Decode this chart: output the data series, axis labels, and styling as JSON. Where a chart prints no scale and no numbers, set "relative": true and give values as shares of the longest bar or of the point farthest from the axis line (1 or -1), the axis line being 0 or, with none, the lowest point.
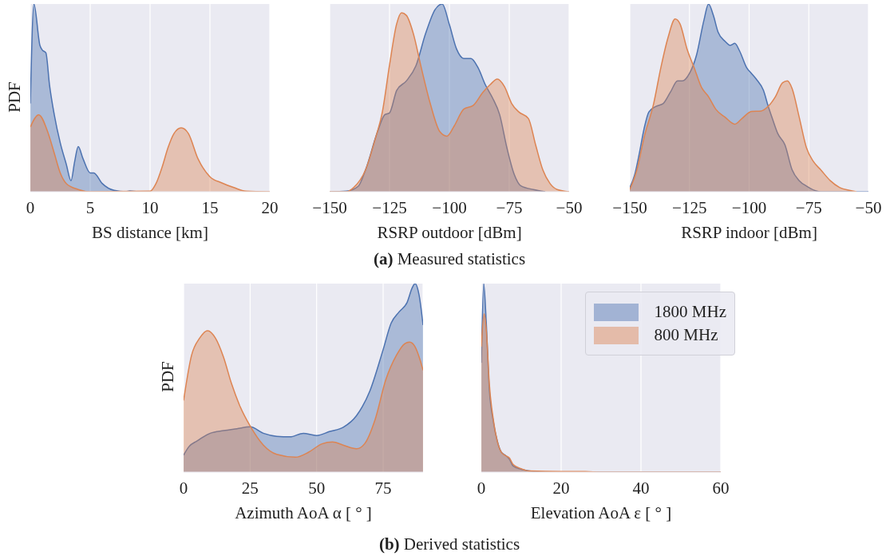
{
  "chart_data": [
    {
      "type": "area",
      "xlabel": "BS distance [km]",
      "ylabel": "PDF",
      "relative": true,
      "xlim": [
        0,
        20
      ],
      "xticks": [
        0,
        5,
        10,
        15,
        20
      ],
      "grid": "x",
      "tick_labels": "x",
      "annotations": [
        "(a) Measured statistics"
      ],
      "series": [
        {
          "color": "#4c72b0",
          "x": [
            0,
            0.3,
            0.8,
            1.0,
            1.3,
            1.6,
            2.0,
            2.5,
            3.0,
            3.4,
            3.7,
            4.0,
            4.4,
            5.0,
            5.3,
            6,
            7,
            8,
            8.3,
            9,
            10
          ],
          "values": [
            0.47,
            1.0,
            0.78,
            0.755,
            0.74,
            0.57,
            0.41,
            0.26,
            0.147,
            0.059,
            0.16,
            0.24,
            0.176,
            0.1,
            0.1,
            0.044,
            0.007,
            0,
            0.004,
            0,
            0
          ]
        },
        {
          "color": "#dd8452",
          "x": [
            0,
            0.7,
            1.5,
            2,
            2.5,
            3,
            4,
            5,
            10,
            10.5,
            11,
            11.5,
            12,
            12.6,
            13.2,
            14,
            15,
            16,
            17,
            18,
            20
          ],
          "values": [
            0.345,
            0.41,
            0.31,
            0.205,
            0.1,
            0.044,
            0.012,
            0,
            0.003,
            0.044,
            0.13,
            0.235,
            0.31,
            0.34,
            0.31,
            0.176,
            0.08,
            0.047,
            0.022,
            0.003,
            0
          ]
        }
      ]
    },
    {
      "type": "area",
      "xlabel": "RSRP outdoor [dBm]",
      "relative": true,
      "xlim": [
        -150,
        -50
      ],
      "xticks": [
        {
          "value": -150,
          "label": "−150"
        },
        {
          "value": -125,
          "label": "−125"
        },
        {
          "value": -100,
          "label": "−100"
        },
        {
          "value": -75,
          "label": "−75"
        },
        {
          "value": -50,
          "label": "−50"
        }
      ],
      "grid": "x",
      "tick_labels": "x",
      "series": [
        {
          "color": "#4c72b0",
          "x": [
            -150,
            -143,
            -138,
            -135,
            -130,
            -127,
            -125,
            -122,
            -118,
            -114,
            -110,
            -106,
            -103,
            -100,
            -97,
            -94,
            -91,
            -88,
            -85,
            -82,
            -79,
            -76,
            -73,
            -70,
            -65,
            -60
          ],
          "values": [
            0,
            0.003,
            0.03,
            0.117,
            0.32,
            0.41,
            0.42,
            0.54,
            0.59,
            0.67,
            0.84,
            0.97,
            1.0,
            0.89,
            0.76,
            0.71,
            0.71,
            0.66,
            0.57,
            0.5,
            0.41,
            0.235,
            0.095,
            0.03,
            0.012,
            0
          ]
        },
        {
          "color": "#dd8452",
          "x": [
            -150,
            -143,
            -140,
            -135,
            -131,
            -128,
            -125,
            -122,
            -120,
            -118,
            -115,
            -112,
            -108,
            -104,
            -101,
            -98,
            -94,
            -90,
            -86,
            -83,
            -80,
            -77,
            -74,
            -71,
            -67,
            -64,
            -61,
            -58,
            -55,
            -50
          ],
          "values": [
            0,
            0,
            0.022,
            0.117,
            0.28,
            0.425,
            0.675,
            0.895,
            0.953,
            0.94,
            0.84,
            0.675,
            0.47,
            0.32,
            0.296,
            0.35,
            0.44,
            0.46,
            0.53,
            0.57,
            0.6,
            0.56,
            0.47,
            0.425,
            0.39,
            0.25,
            0.117,
            0.044,
            0.012,
            0
          ]
        }
      ]
    },
    {
      "type": "area",
      "xlabel": "RSRP indoor [dBm]",
      "relative": true,
      "xlim": [
        -150,
        -50
      ],
      "xticks": [
        {
          "value": -150,
          "label": "−150"
        },
        {
          "value": -125,
          "label": "−125"
        },
        {
          "value": -100,
          "label": "−100"
        },
        {
          "value": -75,
          "label": "−75"
        },
        {
          "value": -50,
          "label": "−50"
        }
      ],
      "grid": "x",
      "tick_labels": "x",
      "series": [
        {
          "color": "#4c72b0",
          "x": [
            -150,
            -148,
            -146,
            -144,
            -142,
            -139,
            -136,
            -133,
            -130,
            -128,
            -125,
            -122,
            -119,
            -117,
            -115,
            -113,
            -110,
            -108,
            -106,
            -104,
            -101,
            -99,
            -97,
            -94,
            -92,
            -90,
            -88,
            -85,
            -82,
            -79,
            -76,
            -70,
            -50
          ],
          "values": [
            0.022,
            0.088,
            0.205,
            0.337,
            0.425,
            0.455,
            0.47,
            0.53,
            0.59,
            0.59,
            0.63,
            0.73,
            0.91,
            1.0,
            0.94,
            0.85,
            0.8,
            0.78,
            0.79,
            0.75,
            0.66,
            0.63,
            0.6,
            0.54,
            0.455,
            0.38,
            0.31,
            0.25,
            0.117,
            0.059,
            0.03,
            0,
            0
          ]
        },
        {
          "color": "#dd8452",
          "x": [
            -150,
            -147,
            -144,
            -140,
            -137,
            -134,
            -131,
            -129,
            -126,
            -123,
            -120,
            -117,
            -114,
            -110,
            -106,
            -103,
            -99,
            -95,
            -92,
            -89,
            -86,
            -84,
            -82,
            -79,
            -76,
            -73,
            -70,
            -66,
            -62,
            -58,
            -55
          ],
          "values": [
            0.012,
            0.117,
            0.29,
            0.47,
            0.66,
            0.82,
            0.92,
            0.895,
            0.76,
            0.66,
            0.557,
            0.506,
            0.44,
            0.396,
            0.36,
            0.39,
            0.428,
            0.43,
            0.455,
            0.506,
            0.58,
            0.59,
            0.55,
            0.396,
            0.235,
            0.16,
            0.117,
            0.059,
            0.022,
            0.007,
            0
          ]
        }
      ]
    },
    {
      "type": "area",
      "xlabel": "Azimuth AoA α [ ° ]",
      "ylabel": "PDF",
      "relative": true,
      "xlim": [
        0,
        90
      ],
      "xticks": [
        0,
        25,
        50,
        75
      ],
      "grid": "x",
      "tick_labels": "x",
      "annotations": [
        "(b) Derived statistics"
      ],
      "series": [
        {
          "color": "#4c72b0",
          "x": [
            0,
            2,
            5,
            10,
            15,
            20,
            25,
            30,
            35,
            40,
            45,
            50,
            55,
            60,
            65,
            70,
            75,
            78,
            81,
            84,
            86,
            87,
            88.5,
            90
          ],
          "values": [
            0.09,
            0.135,
            0.165,
            0.206,
            0.22,
            0.23,
            0.24,
            0.206,
            0.19,
            0.187,
            0.206,
            0.194,
            0.216,
            0.238,
            0.3,
            0.43,
            0.65,
            0.79,
            0.85,
            0.9,
            0.98,
            1.0,
            0.94,
            0.78
          ]
        },
        {
          "color": "#dd8452",
          "x": [
            0,
            3,
            6,
            9,
            12,
            15,
            18,
            21,
            25,
            30,
            35,
            42,
            47,
            52,
            56,
            60,
            65,
            68,
            72,
            76,
            80,
            83,
            85,
            87,
            89,
            90
          ],
          "values": [
            0.38,
            0.62,
            0.71,
            0.75,
            0.71,
            0.61,
            0.47,
            0.356,
            0.245,
            0.143,
            0.094,
            0.079,
            0.106,
            0.15,
            0.16,
            0.143,
            0.124,
            0.15,
            0.28,
            0.49,
            0.62,
            0.68,
            0.69,
            0.665,
            0.59,
            0.54
          ]
        }
      ]
    },
    {
      "type": "area",
      "xlabel": "Elevation AoA ε [ ° ]",
      "relative": true,
      "xlim": [
        0,
        60
      ],
      "xticks": [
        0,
        20,
        40,
        60
      ],
      "grid": "x",
      "tick_labels": "x",
      "legend": "top right",
      "series": [
        {
          "name": "1800 MHz",
          "color": "#4c72b0",
          "x": [
            0,
            0.6,
            1.2,
            2,
            3,
            4,
            5,
            6,
            7,
            8,
            10,
            12,
            15,
            20,
            60
          ],
          "values": [
            0.58,
            1.0,
            0.81,
            0.44,
            0.27,
            0.165,
            0.106,
            0.09,
            0.07,
            0.032,
            0.015,
            0.006,
            0.001,
            0,
            0
          ]
        },
        {
          "name": "800 MHz",
          "color": "#dd8452",
          "x": [
            0,
            0.7,
            1.3,
            2,
            3,
            4,
            5,
            6,
            7,
            8,
            10,
            12,
            20,
            26,
            30,
            60
          ],
          "values": [
            0.665,
            0.84,
            0.74,
            0.47,
            0.28,
            0.165,
            0.106,
            0.088,
            0.076,
            0.04,
            0.018,
            0.006,
            0.003,
            0.003,
            0,
            0
          ]
        }
      ]
    }
  ]
}
